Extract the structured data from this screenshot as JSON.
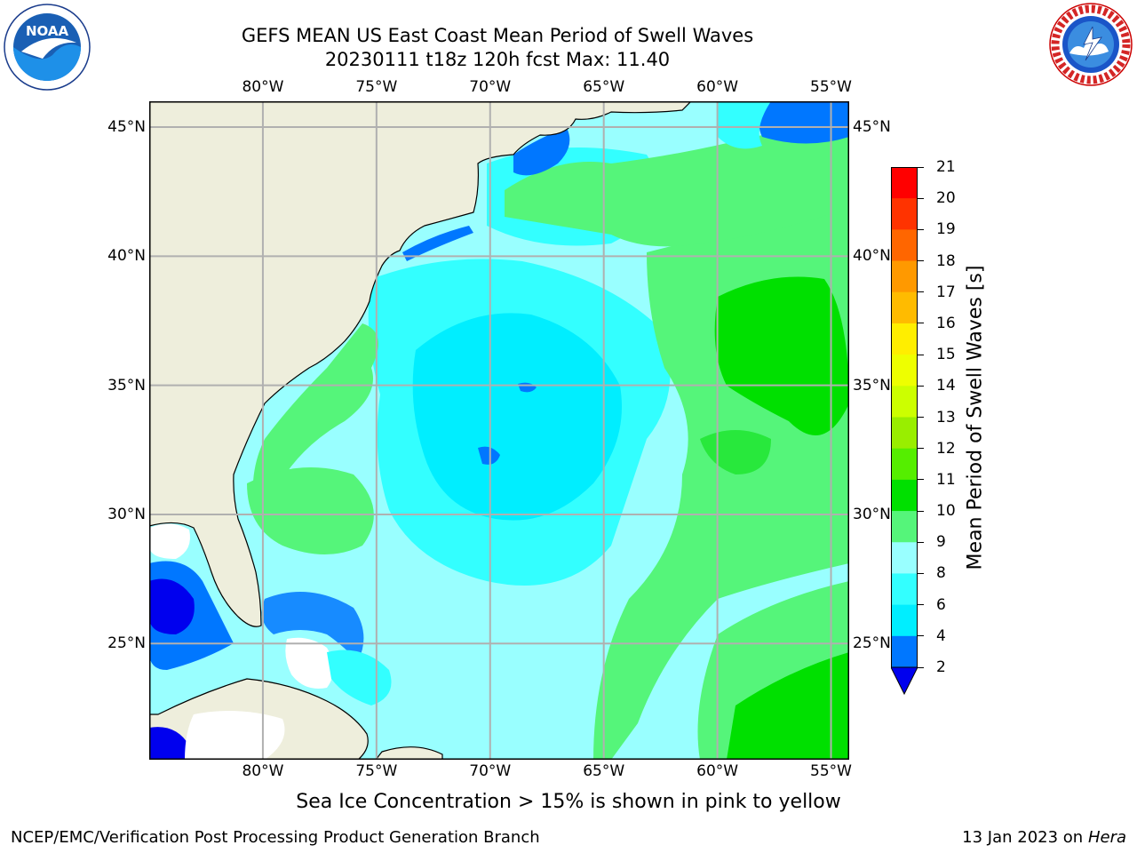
{
  "header": {
    "title_line1": "GEFS MEAN US East Coast Mean Period of Swell Waves",
    "title_line2": "20230111 t18z 120h fcst   Max: 11.40"
  },
  "logos": {
    "left": {
      "icon": "noaa-logo",
      "text": "NOAA",
      "ring_text": "NATIONAL OCEANIC AND ATMOSPHERIC ADMINISTRATION · U.S. DEPARTMENT OF COMMERCE"
    },
    "right": {
      "icon": "nws-logo",
      "ring_text": "NATIONAL WEATHER SERVICE"
    }
  },
  "map": {
    "lon_labels": [
      "80°W",
      "75°W",
      "70°W",
      "65°W",
      "60°W",
      "55°W"
    ],
    "lon_values": [
      -80,
      -75,
      -70,
      -65,
      -60,
      -55
    ],
    "lat_labels": [
      "45°N",
      "40°N",
      "35°N",
      "30°N",
      "25°N"
    ],
    "lat_values": [
      45,
      40,
      35,
      30,
      25
    ],
    "extent": {
      "lon": [
        -85,
        -54.2
      ],
      "lat": [
        20.5,
        46.0
      ]
    },
    "colors": {
      "land": "#eeeedc",
      "ocean_light": "#99ffff",
      "ocean_cyan": "#33ffff",
      "ocean_bright": "#00eeff",
      "green_light": "#55f57a",
      "green_mid": "#28e83c",
      "green_bright": "#00e000",
      "blue_mid": "#0077ff",
      "blue_dark": "#0000ee",
      "no_data": "#ffffff",
      "grid": "#b0b0b0"
    }
  },
  "colorbar": {
    "label": "Mean Period of Swell Waves [s]",
    "ticks": [
      "2",
      "4",
      "6",
      "8",
      "9",
      "10",
      "11",
      "12",
      "13",
      "14",
      "15",
      "16",
      "17",
      "18",
      "19",
      "20",
      "21"
    ],
    "colors": [
      "#0000ee",
      "#0077ff",
      "#00eeff",
      "#33ffff",
      "#99ffff",
      "#55f57a",
      "#00e000",
      "#55ee00",
      "#99ee00",
      "#ccff00",
      "#eeff00",
      "#ffee00",
      "#ffbb00",
      "#ff9900",
      "#ff6600",
      "#ff3300",
      "#ff0000"
    ]
  },
  "caption": "Sea Ice Concentration > 15% is shown in pink to yellow",
  "footer": {
    "left": "NCEP/EMC/Verification Post Processing Product Generation Branch",
    "right_prefix": "13 Jan 2023 on ",
    "right_host": "Hera"
  }
}
